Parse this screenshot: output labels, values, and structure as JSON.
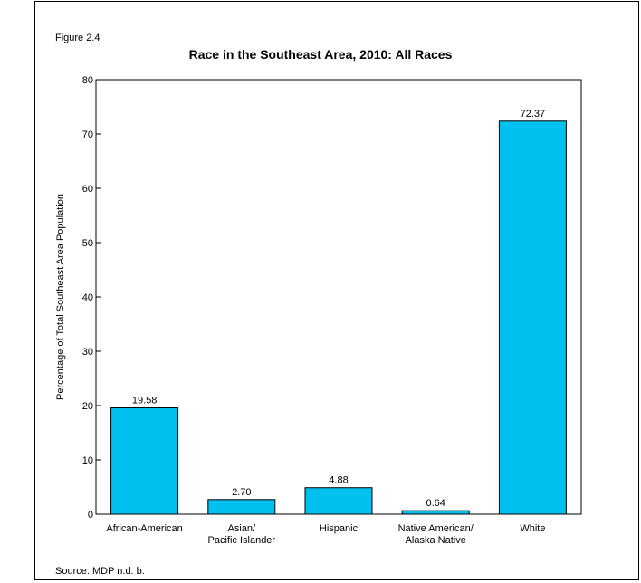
{
  "figure_label": "Figure 2.4",
  "source_note": "Source: MDP n.d. b.",
  "chart_data": {
    "type": "bar",
    "title": "Race in the Southeast Area, 2010: All Races",
    "ylabel": "Percentage of Total Southeast Area Population",
    "xlabel": "",
    "categories": [
      [
        "African-American"
      ],
      [
        "Asian/",
        "Pacific Islander"
      ],
      [
        "Hispanic"
      ],
      [
        "Native American/",
        "Alaska Native"
      ],
      [
        "White"
      ]
    ],
    "values": [
      19.58,
      2.7,
      4.88,
      0.64,
      72.37
    ],
    "value_labels": [
      "19.58",
      "2.70",
      "4.88",
      "0.64",
      "72.37"
    ],
    "ylim": [
      0,
      80
    ],
    "yticks": [
      0,
      10,
      20,
      30,
      40,
      50,
      60,
      70,
      80
    ],
    "bar_color": "#00c0f0",
    "grid": false,
    "legend": "none"
  }
}
